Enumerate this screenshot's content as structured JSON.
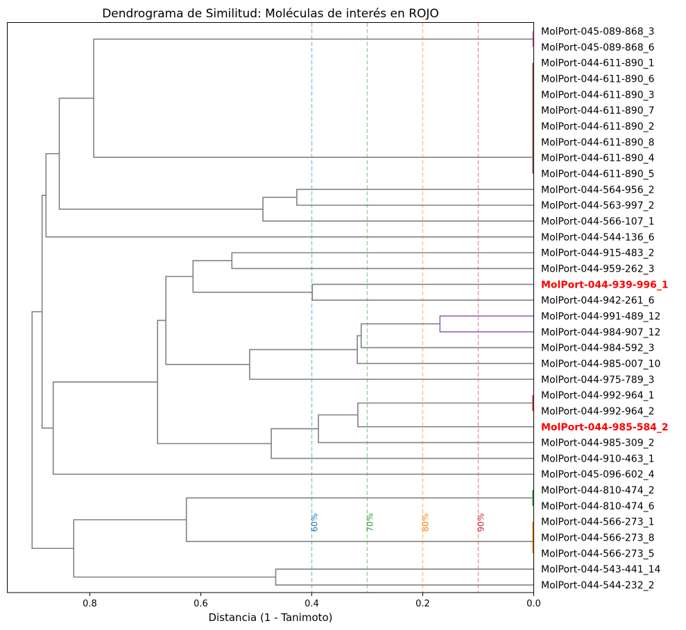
{
  "chart_data": {
    "type": "dendrogram",
    "title": "Dendrograma de Similitud: Moléculas de interés en ROJO",
    "xlabel": "Distancia (1 - Tanimoto)",
    "ylabel": "",
    "xlim": [
      0.949,
      0.0
    ],
    "x_ticks": [
      {
        "value": 0.8,
        "label": "0.8"
      },
      {
        "value": 0.6,
        "label": "0.6"
      },
      {
        "value": 0.4,
        "label": "0.4"
      },
      {
        "value": 0.2,
        "label": "0.2"
      },
      {
        "value": 0.0,
        "label": "0.0"
      }
    ],
    "grid": false,
    "highlight_color": "#ff0000",
    "default_link_color": "#808080",
    "leaves": [
      {
        "label": "MolPort-045-089-868_3",
        "highlight": false
      },
      {
        "label": "MolPort-045-089-868_6",
        "highlight": false
      },
      {
        "label": "MolPort-044-611-890_1",
        "highlight": false
      },
      {
        "label": "MolPort-044-611-890_6",
        "highlight": false
      },
      {
        "label": "MolPort-044-611-890_3",
        "highlight": false
      },
      {
        "label": "MolPort-044-611-890_7",
        "highlight": false
      },
      {
        "label": "MolPort-044-611-890_2",
        "highlight": false
      },
      {
        "label": "MolPort-044-611-890_8",
        "highlight": false
      },
      {
        "label": "MolPort-044-611-890_4",
        "highlight": false
      },
      {
        "label": "MolPort-044-611-890_5",
        "highlight": false
      },
      {
        "label": "MolPort-044-564-956_2",
        "highlight": false
      },
      {
        "label": "MolPort-044-563-997_2",
        "highlight": false
      },
      {
        "label": "MolPort-044-566-107_1",
        "highlight": false
      },
      {
        "label": "MolPort-044-544-136_6",
        "highlight": false
      },
      {
        "label": "MolPort-044-915-483_2",
        "highlight": false
      },
      {
        "label": "MolPort-044-959-262_3",
        "highlight": false
      },
      {
        "label": "MolPort-044-939-996_1",
        "highlight": true
      },
      {
        "label": "MolPort-044-942-261_6",
        "highlight": false
      },
      {
        "label": "MolPort-044-991-489_12",
        "highlight": false
      },
      {
        "label": "MolPort-044-984-907_12",
        "highlight": false
      },
      {
        "label": "MolPort-044-984-592_3",
        "highlight": false
      },
      {
        "label": "MolPort-044-985-007_10",
        "highlight": false
      },
      {
        "label": "MolPort-044-975-789_3",
        "highlight": false
      },
      {
        "label": "MolPort-044-992-964_1",
        "highlight": false
      },
      {
        "label": "MolPort-044-992-964_2",
        "highlight": false
      },
      {
        "label": "MolPort-044-985-584_2",
        "highlight": true
      },
      {
        "label": "MolPort-044-985-309_2",
        "highlight": false
      },
      {
        "label": "MolPort-044-910-463_1",
        "highlight": false
      },
      {
        "label": "MolPort-045-096-602_4",
        "highlight": false
      },
      {
        "label": "MolPort-044-810-474_2",
        "highlight": false
      },
      {
        "label": "MolPort-044-810-474_6",
        "highlight": false
      },
      {
        "label": "MolPort-044-566-273_1",
        "highlight": false
      },
      {
        "label": "MolPort-044-566-273_8",
        "highlight": false
      },
      {
        "label": "MolPort-044-566-273_5",
        "highlight": false
      },
      {
        "label": "MolPort-044-543-441_14",
        "highlight": false
      },
      {
        "label": "MolPort-044-544-232_2",
        "highlight": false
      }
    ],
    "zero_clusters": [
      {
        "id": "Z1",
        "leaves": [
          0,
          1
        ],
        "center": 0.5,
        "color": "#e377c2"
      },
      {
        "id": "Z2",
        "leaves": [
          2,
          3,
          4,
          5,
          6,
          7,
          8,
          9
        ],
        "center": 7.97,
        "color": "#8c564b"
      },
      {
        "id": "Z3",
        "leaves": [
          23,
          24
        ],
        "center": 23.5,
        "color": "#d62728"
      },
      {
        "id": "Z4",
        "leaves": [
          29,
          30
        ],
        "center": 29.5,
        "color": "#2ca02c"
      },
      {
        "id": "Z5",
        "leaves": [
          31,
          32,
          33
        ],
        "center": 32.25,
        "color": "#ff7f0e"
      }
    ],
    "links": [
      {
        "id": "D",
        "h": 0.427,
        "a": "L10",
        "b": "L11",
        "color": "#808080"
      },
      {
        "id": "C",
        "h": 0.488,
        "a": "D",
        "b": "L12",
        "color": "#808080"
      },
      {
        "id": "A",
        "h": 0.793,
        "a": "Z1",
        "b": "Z2",
        "color": "#808080"
      },
      {
        "id": "B",
        "h": 0.855,
        "a": "A",
        "b": "C",
        "color": "#808080"
      },
      {
        "id": "E",
        "h": 0.879,
        "a": "B",
        "b": "L13",
        "color": "#808080"
      },
      {
        "id": "G",
        "h": 0.544,
        "a": "L14",
        "b": "L15",
        "color": "#808080"
      },
      {
        "id": "I",
        "h": 0.399,
        "a": "L16",
        "b": "L17",
        "color": "#808080"
      },
      {
        "id": "H",
        "h": 0.614,
        "a": "G",
        "b": "I",
        "color": "#808080"
      },
      {
        "id": "K",
        "h": 0.169,
        "a": "L18",
        "b": "L19",
        "color": "#9467bd"
      },
      {
        "id": "L",
        "h": 0.311,
        "a": "K",
        "b": "L20",
        "color": "#808080"
      },
      {
        "id": "M",
        "h": 0.318,
        "a": "L",
        "b": "L21",
        "color": "#808080"
      },
      {
        "id": "N",
        "h": 0.512,
        "a": "M",
        "b": "L22",
        "color": "#808080"
      },
      {
        "id": "J",
        "h": 0.663,
        "a": "H",
        "b": "N",
        "color": "#808080"
      },
      {
        "id": "P",
        "h": 0.317,
        "a": "Z3",
        "b": "L25",
        "color": "#808080"
      },
      {
        "id": "Q",
        "h": 0.388,
        "a": "P",
        "b": "L26",
        "color": "#808080"
      },
      {
        "id": "R",
        "h": 0.473,
        "a": "Q",
        "b": "L27",
        "color": "#808080"
      },
      {
        "id": "O",
        "h": 0.678,
        "a": "J",
        "b": "R",
        "color": "#808080"
      },
      {
        "id": "T",
        "h": 0.866,
        "a": "O",
        "b": "L28",
        "color": "#808080"
      },
      {
        "id": "F",
        "h": 0.886,
        "a": "E",
        "b": "T",
        "color": "#808080"
      },
      {
        "id": "U",
        "h": 0.626,
        "a": "Z4",
        "b": "Z5",
        "color": "#808080"
      },
      {
        "id": "V",
        "h": 0.465,
        "a": "L34",
        "b": "L35",
        "color": "#808080"
      },
      {
        "id": "W",
        "h": 0.829,
        "a": "U",
        "b": "V",
        "color": "#808080"
      },
      {
        "id": "ROOT",
        "h": 0.904,
        "a": "F",
        "b": "W",
        "color": "#808080"
      }
    ],
    "thresholds": [
      {
        "distance": 0.4,
        "label": "60%",
        "color": "#1f77b4"
      },
      {
        "distance": 0.3,
        "label": "70%",
        "color": "#2ca02c"
      },
      {
        "distance": 0.2,
        "label": "80%",
        "color": "#ff7f0e"
      },
      {
        "distance": 0.1,
        "label": "90%",
        "color": "#d62728"
      }
    ]
  }
}
